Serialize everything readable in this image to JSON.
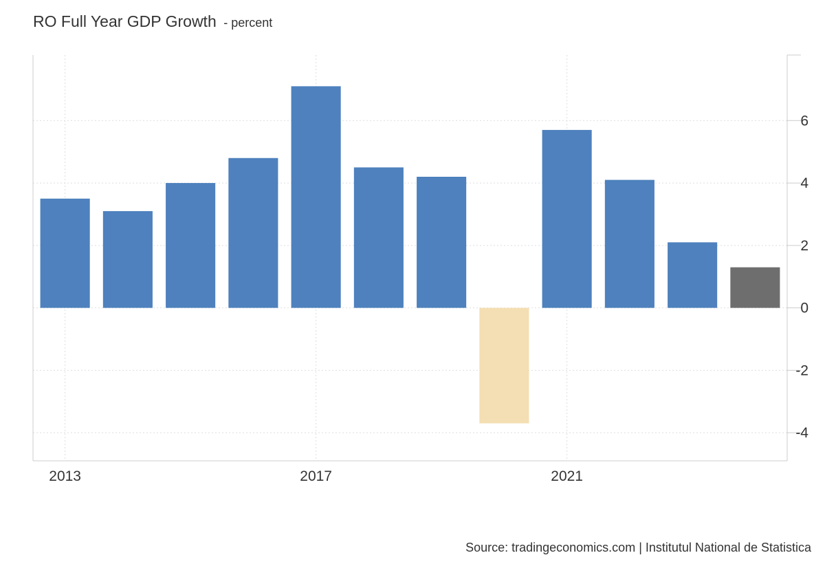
{
  "header": {
    "title": "RO Full Year GDP Growth",
    "unit": "- percent"
  },
  "source": "Source: tradingeconomics.com | Institutul National de Statistica",
  "chart_data": {
    "type": "bar",
    "title": "RO Full Year GDP Growth",
    "xlabel": "",
    "ylabel": "",
    "categories": [
      "2013",
      "2014",
      "2015",
      "2016",
      "2017",
      "2018",
      "2019",
      "2020",
      "2021",
      "2022",
      "2023",
      "2024"
    ],
    "values": [
      3.5,
      3.1,
      4.0,
      4.8,
      7.1,
      4.5,
      4.2,
      -3.7,
      5.7,
      4.1,
      2.1,
      1.3
    ],
    "x_tick_labels": [
      "2013",
      "2017",
      "2021"
    ],
    "y_ticks": [
      -4,
      -2,
      0,
      2,
      4,
      6
    ],
    "ylim": [
      -4.9,
      8.1
    ],
    "y_axis_position": "right",
    "grid": true,
    "legend": "none",
    "colors": {
      "positive": "#4e81bd",
      "negative": "#f4deb3",
      "latest": "#6e6e6e",
      "grid": "#dddddd",
      "axis": "#cccccc"
    }
  }
}
